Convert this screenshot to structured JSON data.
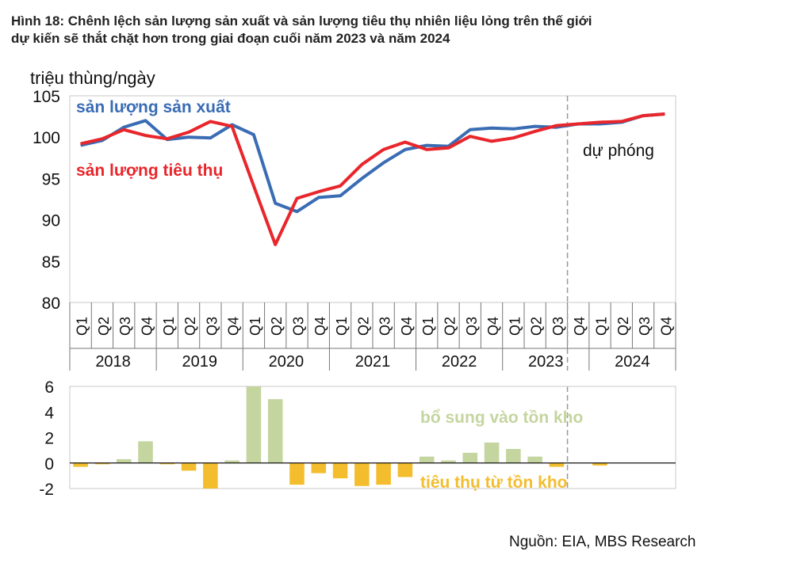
{
  "title_line1": "Hình 18: Chênh lệch sản lượng sản xuất và sản lượng tiêu thụ nhiên liệu lỏng trên thế giới",
  "title_line2": "dự kiến sẽ thắt chặt hơn trong giai đoạn cuối năm 2023 và năm 2024",
  "source": "Nguồn: EIA, MBS Research",
  "chart_data": [
    {
      "type": "line",
      "ylabel": "triệu thùng/ngày",
      "ylim": [
        80,
        105
      ],
      "yticks": [
        80,
        85,
        90,
        95,
        100,
        105
      ],
      "quarters": [
        "Q1",
        "Q2",
        "Q3",
        "Q4",
        "Q1",
        "Q2",
        "Q3",
        "Q4",
        "Q1",
        "Q2",
        "Q3",
        "Q4",
        "Q1",
        "Q2",
        "Q3",
        "Q4",
        "Q1",
        "Q2",
        "Q3",
        "Q4",
        "Q1",
        "Q2",
        "Q3",
        "Q4",
        "Q1",
        "Q2",
        "Q3",
        "Q4"
      ],
      "years": [
        "2018",
        "2019",
        "2020",
        "2021",
        "2022",
        "2023",
        "2024"
      ],
      "forecast_label": "dự phóng",
      "forecast_start_index": 23,
      "grid": false,
      "series": [
        {
          "name": "sản lượng sản xuất",
          "color": "#3a6cb4",
          "values": [
            99.0,
            99.6,
            101.2,
            102.0,
            99.7,
            100.0,
            99.9,
            101.5,
            100.3,
            92.0,
            91.0,
            92.7,
            92.9,
            95.0,
            96.9,
            98.5,
            99.0,
            98.9,
            100.9,
            101.1,
            101.0,
            101.3,
            101.2,
            101.6,
            101.6,
            101.8,
            102.6,
            102.8
          ]
        },
        {
          "name": "sản lượng tiêu thụ",
          "color": "#e8262b",
          "values": [
            99.2,
            99.8,
            100.9,
            100.2,
            99.8,
            100.6,
            101.9,
            101.3,
            94.1,
            87.0,
            92.6,
            93.4,
            94.1,
            96.7,
            98.5,
            99.4,
            98.5,
            98.7,
            100.1,
            99.5,
            99.9,
            100.7,
            101.4,
            101.6,
            101.8,
            101.9,
            102.6,
            102.8
          ]
        }
      ]
    },
    {
      "type": "bar",
      "ylim": [
        -2,
        6
      ],
      "yticks": [
        6,
        4,
        2,
        0,
        -2
      ],
      "grid": false,
      "labels": {
        "positive": {
          "text": "bổ sung vào tồn kho",
          "color": "#c4d59f"
        },
        "negative": {
          "text": "tiêu thụ từ tồn kho",
          "color": "#f3bd2e"
        }
      },
      "values": [
        -0.3,
        -0.1,
        0.3,
        1.7,
        -0.1,
        -0.6,
        -2.0,
        0.2,
        6.0,
        5.0,
        -1.7,
        -0.8,
        -1.2,
        -1.8,
        -1.7,
        -1.1,
        0.5,
        0.2,
        0.8,
        1.6,
        1.1,
        0.5,
        -0.3,
        0.0,
        -0.2,
        0.0,
        0.0,
        0.0
      ]
    }
  ]
}
